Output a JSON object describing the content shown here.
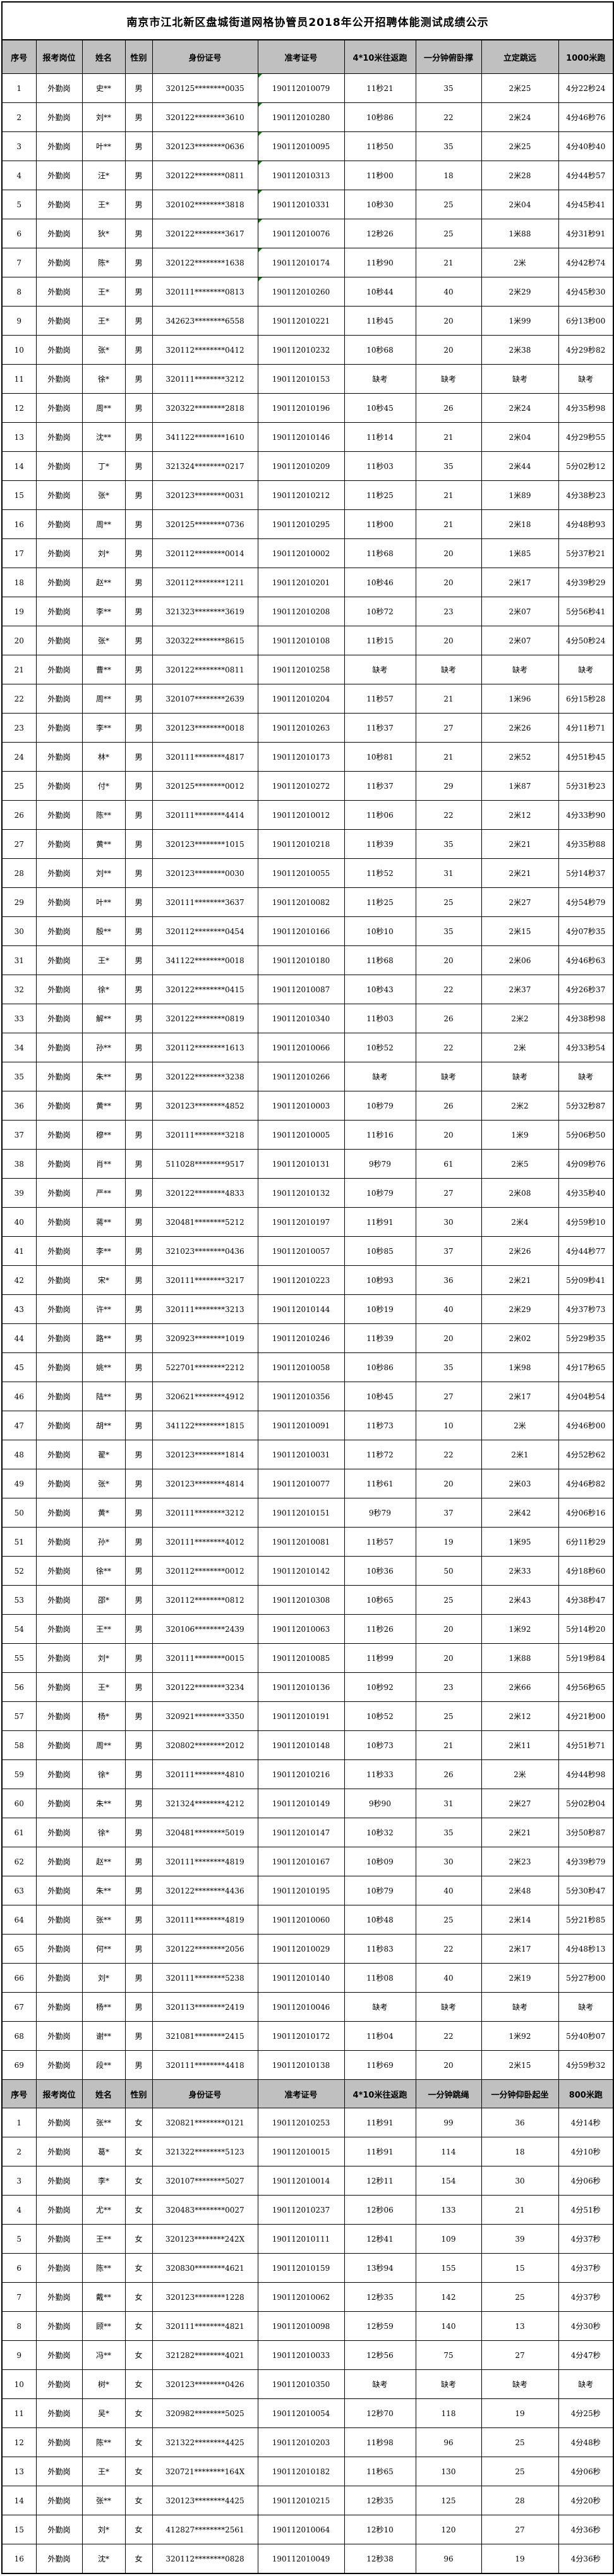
{
  "title": "南京市江北新区盘城街道网格协管员2018年公开招聘体能测试成绩公示",
  "colors": {
    "header_bg": "#c0c0c0",
    "border": "#000000",
    "green_corner": "#008000",
    "page_bg": "#ffffff"
  },
  "sections": [
    {
      "name": "male",
      "columns": [
        "序号",
        "报考岗位",
        "姓名",
        "性别",
        "身份证号",
        "准考证号",
        "4*10米往返跑",
        "一分钟俯卧撑",
        "立定跳远",
        "1000米跑"
      ],
      "column_keys": [
        "index",
        "position",
        "name",
        "gender",
        "id-number",
        "ticket-number",
        "shuttle-run",
        "pushups",
        "standing-jump",
        "run-1000m"
      ],
      "green_corner_rows": [
        1,
        2,
        3,
        4,
        5,
        6,
        7,
        8
      ],
      "rows": [
        [
          "1",
          "外勤岗",
          "史**",
          "男",
          "320125********0035",
          "190112010079",
          "11秒21",
          "35",
          "2米25",
          "4分22秒24"
        ],
        [
          "2",
          "外勤岗",
          "刘**",
          "男",
          "320122********3610",
          "190112010280",
          "10秒86",
          "22",
          "2米24",
          "4分46秒76"
        ],
        [
          "3",
          "外勤岗",
          "叶**",
          "男",
          "320123********0636",
          "190112010095",
          "11秒50",
          "35",
          "2米25",
          "4分40秒40"
        ],
        [
          "4",
          "外勤岗",
          "汪*",
          "男",
          "320122********0811",
          "190112010313",
          "11秒00",
          "18",
          "2米28",
          "4分44秒57"
        ],
        [
          "5",
          "外勤岗",
          "王*",
          "男",
          "320102********3818",
          "190112010331",
          "10秒30",
          "25",
          "2米04",
          "4分45秒41"
        ],
        [
          "6",
          "外勤岗",
          "狄*",
          "男",
          "320122********3617",
          "190112010076",
          "12秒26",
          "25",
          "1米88",
          "4分31秒91"
        ],
        [
          "7",
          "外勤岗",
          "陈*",
          "男",
          "320122********1638",
          "190112010174",
          "11秒90",
          "21",
          "2米",
          "4分42秒74"
        ],
        [
          "8",
          "外勤岗",
          "王*",
          "男",
          "320111********0813",
          "190112010260",
          "10秒44",
          "40",
          "2米29",
          "4分45秒30"
        ],
        [
          "9",
          "外勤岗",
          "王*",
          "男",
          "342623********6558",
          "190112010221",
          "11秒45",
          "20",
          "1米99",
          "6分13秒00"
        ],
        [
          "10",
          "外勤岗",
          "张*",
          "男",
          "320112********0412",
          "190112010232",
          "10秒68",
          "20",
          "2米38",
          "4分29秒82"
        ],
        [
          "11",
          "外勤岗",
          "徐*",
          "男",
          "320111********3212",
          "190112010153",
          "缺考",
          "缺考",
          "缺考",
          "缺考"
        ],
        [
          "12",
          "外勤岗",
          "周**",
          "男",
          "320322********2818",
          "190112010196",
          "10秒45",
          "26",
          "2米24",
          "4分35秒98"
        ],
        [
          "13",
          "外勤岗",
          "沈**",
          "男",
          "341122********1610",
          "190112010146",
          "11秒14",
          "21",
          "2米04",
          "4分29秒55"
        ],
        [
          "14",
          "外勤岗",
          "丁*",
          "男",
          "321324********0217",
          "190112010209",
          "11秒03",
          "35",
          "2米44",
          "5分02秒12"
        ],
        [
          "15",
          "外勤岗",
          "张*",
          "男",
          "320123********0031",
          "190112010212",
          "11秒25",
          "21",
          "1米89",
          "4分38秒23"
        ],
        [
          "16",
          "外勤岗",
          "周**",
          "男",
          "320125********0736",
          "190112010295",
          "11秒00",
          "21",
          "2米18",
          "4分48秒93"
        ],
        [
          "17",
          "外勤岗",
          "刘*",
          "男",
          "320112********0014",
          "190112010002",
          "11秒68",
          "20",
          "1米85",
          "5分37秒21"
        ],
        [
          "18",
          "外勤岗",
          "赵**",
          "男",
          "320112********1211",
          "190112010201",
          "10秒46",
          "20",
          "2米17",
          "4分39秒29"
        ],
        [
          "19",
          "外勤岗",
          "李**",
          "男",
          "321323********3619",
          "190112010208",
          "10秒72",
          "23",
          "2米07",
          "5分56秒41"
        ],
        [
          "20",
          "外勤岗",
          "张*",
          "男",
          "320322********8615",
          "190112010108",
          "11秒15",
          "20",
          "2米07",
          "4分50秒24"
        ],
        [
          "21",
          "外勤岗",
          "曹**",
          "男",
          "320122********0811",
          "190112010258",
          "缺考",
          "缺考",
          "缺考",
          "缺考"
        ],
        [
          "22",
          "外勤岗",
          "周**",
          "男",
          "320107********2639",
          "190112010204",
          "11秒57",
          "21",
          "1米96",
          "6分15秒28"
        ],
        [
          "23",
          "外勤岗",
          "李**",
          "男",
          "320123********0018",
          "190112010263",
          "11秒37",
          "27",
          "2米26",
          "4分11秒71"
        ],
        [
          "24",
          "外勤岗",
          "林*",
          "男",
          "320111********4817",
          "190112010173",
          "10秒81",
          "21",
          "2米52",
          "4分51秒45"
        ],
        [
          "25",
          "外勤岗",
          "付*",
          "男",
          "320125********0012",
          "190112010272",
          "11秒37",
          "29",
          "1米87",
          "5分31秒23"
        ],
        [
          "26",
          "外勤岗",
          "陈**",
          "男",
          "320111********4414",
          "190112010012",
          "11秒06",
          "22",
          "2米12",
          "4分33秒90"
        ],
        [
          "27",
          "外勤岗",
          "黄**",
          "男",
          "320123********1015",
          "190112010218",
          "11秒39",
          "35",
          "2米21",
          "4分35秒88"
        ],
        [
          "28",
          "外勤岗",
          "刘**",
          "男",
          "320123********0030",
          "190112010055",
          "11秒52",
          "31",
          "2米21",
          "5分14秒37"
        ],
        [
          "29",
          "外勤岗",
          "叶**",
          "男",
          "320111********3637",
          "190112010082",
          "11秒25",
          "25",
          "2米27",
          "4分54秒79"
        ],
        [
          "30",
          "外勤岗",
          "殷**",
          "男",
          "320112********0454",
          "190112010166",
          "10秒10",
          "35",
          "2米15",
          "4分07秒35"
        ],
        [
          "31",
          "外勤岗",
          "王*",
          "男",
          "341122********0018",
          "190112010180",
          "11秒68",
          "20",
          "2米06",
          "4分46秒63"
        ],
        [
          "32",
          "外勤岗",
          "徐*",
          "男",
          "320122********0415",
          "190112010087",
          "10秒43",
          "22",
          "2米37",
          "4分26秒37"
        ],
        [
          "33",
          "外勤岗",
          "解**",
          "男",
          "320122********0819",
          "190112010340",
          "11秒03",
          "26",
          "2米2",
          "4分38秒98"
        ],
        [
          "34",
          "外勤岗",
          "孙**",
          "男",
          "320112********1613",
          "190112010066",
          "10秒52",
          "22",
          "2米",
          "4分33秒54"
        ],
        [
          "35",
          "外勤岗",
          "朱**",
          "男",
          "320122********3238",
          "190112010266",
          "缺考",
          "缺考",
          "缺考",
          "缺考"
        ],
        [
          "36",
          "外勤岗",
          "黄**",
          "男",
          "320123********4852",
          "190112010003",
          "10秒79",
          "26",
          "2米2",
          "5分32秒87"
        ],
        [
          "37",
          "外勤岗",
          "穆**",
          "男",
          "320111********3218",
          "190112010005",
          "11秒16",
          "20",
          "1米9",
          "5分06秒50"
        ],
        [
          "38",
          "外勤岗",
          "肖**",
          "男",
          "511028********9517",
          "190112010131",
          "9秒79",
          "61",
          "2米5",
          "4分09秒76"
        ],
        [
          "39",
          "外勤岗",
          "严**",
          "男",
          "320122********4833",
          "190112010132",
          "10秒79",
          "27",
          "2米08",
          "4分35秒40"
        ],
        [
          "40",
          "外勤岗",
          "蒋**",
          "男",
          "320481********5212",
          "190112010197",
          "11秒91",
          "30",
          "2米4",
          "4分59秒10"
        ],
        [
          "41",
          "外勤岗",
          "李**",
          "男",
          "321023********0436",
          "190112010057",
          "10秒85",
          "37",
          "2米26",
          "4分44秒77"
        ],
        [
          "42",
          "外勤岗",
          "宋*",
          "男",
          "320111********3217",
          "190112010223",
          "10秒93",
          "36",
          "2米21",
          "5分09秒41"
        ],
        [
          "43",
          "外勤岗",
          "许**",
          "男",
          "320111********3213",
          "190112010144",
          "10秒19",
          "40",
          "2米29",
          "4分37秒73"
        ],
        [
          "44",
          "外勤岗",
          "路**",
          "男",
          "320923********1019",
          "190112010246",
          "11秒39",
          "20",
          "2米02",
          "5分29秒35"
        ],
        [
          "45",
          "外勤岗",
          "姚**",
          "男",
          "522701********2212",
          "190112010058",
          "10秒86",
          "35",
          "1米98",
          "4分17秒65"
        ],
        [
          "46",
          "外勤岗",
          "陆**",
          "男",
          "320621********4912",
          "190112010356",
          "10秒45",
          "27",
          "2米17",
          "4分04秒54"
        ],
        [
          "47",
          "外勤岗",
          "胡**",
          "男",
          "341122********1815",
          "190112010091",
          "11秒73",
          "10",
          "2米",
          "4分46秒00"
        ],
        [
          "48",
          "外勤岗",
          "翟*",
          "男",
          "320123********1814",
          "190112010031",
          "11秒72",
          "22",
          "2米1",
          "4分52秒62"
        ],
        [
          "49",
          "外勤岗",
          "张*",
          "男",
          "320123********4814",
          "190112010077",
          "11秒61",
          "20",
          "2米03",
          "4分46秒82"
        ],
        [
          "50",
          "外勤岗",
          "黄*",
          "男",
          "320111********3212",
          "190112010151",
          "9秒79",
          "37",
          "2米42",
          "4分06秒16"
        ],
        [
          "51",
          "外勤岗",
          "孙*",
          "男",
          "320111********4012",
          "190112010081",
          "11秒57",
          "19",
          "1米95",
          "6分11秒29"
        ],
        [
          "52",
          "外勤岗",
          "徐**",
          "男",
          "320112********0012",
          "190112010142",
          "10秒36",
          "50",
          "2米33",
          "4分18秒60"
        ],
        [
          "53",
          "外勤岗",
          "邵*",
          "男",
          "320112********0812",
          "190112010308",
          "10秒65",
          "25",
          "2米43",
          "4分38秒47"
        ],
        [
          "54",
          "外勤岗",
          "王**",
          "男",
          "320106********2439",
          "190112010063",
          "11秒26",
          "20",
          "1米92",
          "5分14秒20"
        ],
        [
          "55",
          "外勤岗",
          "刘*",
          "男",
          "320111********0015",
          "190112010085",
          "11秒99",
          "20",
          "1米88",
          "5分19秒84"
        ],
        [
          "56",
          "外勤岗",
          "王*",
          "男",
          "320122********3234",
          "190112010136",
          "10秒92",
          "23",
          "2米66",
          "4分56秒65"
        ],
        [
          "57",
          "外勤岗",
          "杨*",
          "男",
          "320921********3350",
          "190112010191",
          "10秒52",
          "25",
          "2米12",
          "4分21秒00"
        ],
        [
          "58",
          "外勤岗",
          "周**",
          "男",
          "320802********2012",
          "190112010148",
          "10秒73",
          "21",
          "2米11",
          "4分51秒71"
        ],
        [
          "59",
          "外勤岗",
          "徐*",
          "男",
          "320111********4810",
          "190112010216",
          "11秒33",
          "26",
          "2米",
          "4分44秒98"
        ],
        [
          "60",
          "外勤岗",
          "朱**",
          "男",
          "321324********4212",
          "190112010149",
          "9秒90",
          "31",
          "2米27",
          "5分02秒04"
        ],
        [
          "61",
          "外勤岗",
          "徐*",
          "男",
          "320481********5019",
          "190112010147",
          "10秒32",
          "35",
          "2米21",
          "3分50秒87"
        ],
        [
          "62",
          "外勤岗",
          "赵**",
          "男",
          "320111********4819",
          "190112010167",
          "10秒09",
          "30",
          "2米23",
          "4分39秒79"
        ],
        [
          "63",
          "外勤岗",
          "朱**",
          "男",
          "320122********4436",
          "190112010195",
          "10秒79",
          "40",
          "2米48",
          "5分30秒47"
        ],
        [
          "64",
          "外勤岗",
          "张**",
          "男",
          "320111********4819",
          "190112010060",
          "10秒48",
          "25",
          "2米14",
          "5分21秒85"
        ],
        [
          "65",
          "外勤岗",
          "何**",
          "男",
          "320122********2056",
          "190112010029",
          "11秒83",
          "22",
          "2米17",
          "4分48秒13"
        ],
        [
          "66",
          "外勤岗",
          "刘*",
          "男",
          "320111********5238",
          "190112010140",
          "11秒08",
          "40",
          "2米19",
          "5分27秒00"
        ],
        [
          "67",
          "外勤岗",
          "杨**",
          "男",
          "320113********2419",
          "190112010046",
          "缺考",
          "缺考",
          "缺考",
          "缺考"
        ],
        [
          "68",
          "外勤岗",
          "谢**",
          "男",
          "321081********2415",
          "190112010172",
          "11秒04",
          "22",
          "1米92",
          "5分40秒07"
        ],
        [
          "69",
          "外勤岗",
          "段**",
          "男",
          "320111********4418",
          "190112010138",
          "11秒69",
          "20",
          "2米15",
          "4分59秒32"
        ]
      ]
    },
    {
      "name": "female",
      "columns": [
        "序号",
        "报考岗位",
        "姓名",
        "性别",
        "身份证号",
        "准考证号",
        "4*10米往返跑",
        "一分钟跳绳",
        "一分钟仰卧起坐",
        "800米跑"
      ],
      "column_keys": [
        "index",
        "position",
        "name",
        "gender",
        "id-number",
        "ticket-number",
        "shuttle-run",
        "rope-skipping",
        "situps",
        "run-800m"
      ],
      "green_corner_rows": [],
      "rows": [
        [
          "1",
          "外勤岗",
          "张**",
          "女",
          "320821********0121",
          "190112010253",
          "11秒91",
          "99",
          "36",
          "4分14秒"
        ],
        [
          "2",
          "外勤岗",
          "葛*",
          "女",
          "321322********5123",
          "190112010015",
          "11秒91",
          "114",
          "18",
          "4分10秒"
        ],
        [
          "3",
          "外勤岗",
          "李*",
          "女",
          "320107********5027",
          "190112010014",
          "12秒11",
          "154",
          "30",
          "4分06秒"
        ],
        [
          "4",
          "外勤岗",
          "尤**",
          "女",
          "320483********0027",
          "190112010237",
          "12秒06",
          "133",
          "21",
          "4分51秒"
        ],
        [
          "5",
          "外勤岗",
          "王**",
          "女",
          "320123********242X",
          "190112010111",
          "12秒41",
          "109",
          "39",
          "4分37秒"
        ],
        [
          "6",
          "外勤岗",
          "陈**",
          "女",
          "320830********4621",
          "190112010159",
          "13秒94",
          "155",
          "15",
          "4分37秒"
        ],
        [
          "7",
          "外勤岗",
          "戴**",
          "女",
          "320123********1228",
          "190112010062",
          "12秒35",
          "142",
          "25",
          "4分37秒"
        ],
        [
          "8",
          "外勤岗",
          "顾**",
          "女",
          "320111********4821",
          "190112010098",
          "12秒59",
          "140",
          "13",
          "4分30秒"
        ],
        [
          "9",
          "外勤岗",
          "冯**",
          "女",
          "321282********4021",
          "190112010033",
          "12秒56",
          "75",
          "27",
          "4分47秒"
        ],
        [
          "10",
          "外勤岗",
          "树*",
          "女",
          "320123********0426",
          "190112010350",
          "缺考",
          "缺考",
          "缺考",
          "缺考"
        ],
        [
          "11",
          "外勤岗",
          "吴*",
          "女",
          "320982********5025",
          "190112010054",
          "12秒70",
          "118",
          "19",
          "4分25秒"
        ],
        [
          "12",
          "外勤岗",
          "陈**",
          "女",
          "321322********4425",
          "190112010203",
          "11秒98",
          "96",
          "25",
          "4分48秒"
        ],
        [
          "13",
          "外勤岗",
          "王*",
          "女",
          "320721********164X",
          "190112010182",
          "11秒65",
          "130",
          "25",
          "4分06秒"
        ],
        [
          "14",
          "外勤岗",
          "张**",
          "女",
          "320123********4425",
          "190112010215",
          "12秒35",
          "125",
          "28",
          "4分20秒"
        ],
        [
          "15",
          "外勤岗",
          "刘*",
          "女",
          "412827********2561",
          "190112010064",
          "12秒10",
          "120",
          "27",
          "4分36秒"
        ],
        [
          "16",
          "外勤岗",
          "沈*",
          "女",
          "320112********0828",
          "190112010049",
          "12秒38",
          "96",
          "19",
          "4分36秒"
        ]
      ]
    }
  ]
}
